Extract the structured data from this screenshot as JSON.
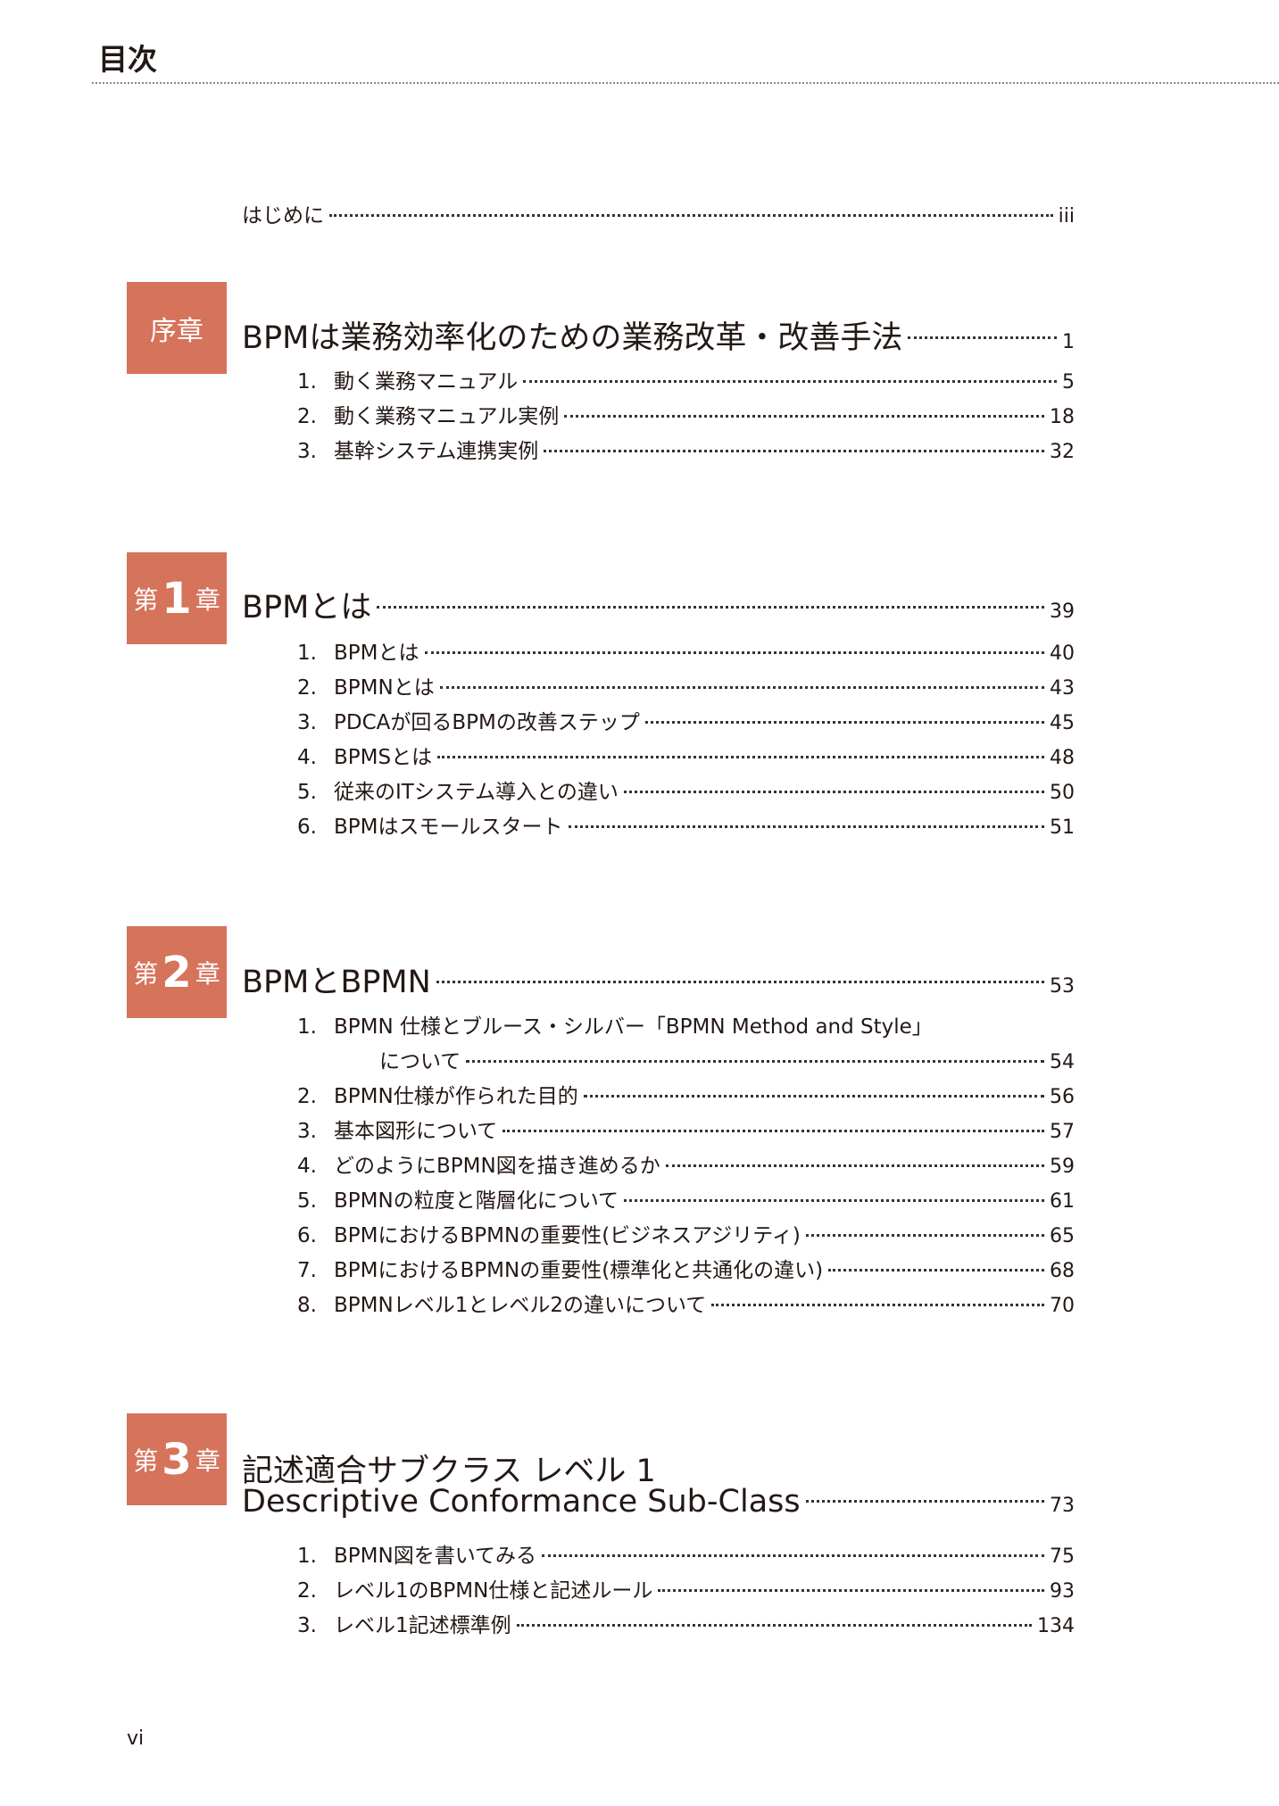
{
  "header": {
    "title": "目次"
  },
  "intro": {
    "label": "はじめに",
    "page": "iii"
  },
  "chapters": [
    {
      "badge": {
        "text": "序章"
      },
      "title": [
        "BPMは業務効率化のための業務改革・改善手法"
      ],
      "page": "1",
      "items": [
        {
          "num": "1.",
          "label": "動く業務マニュアル",
          "page": "5"
        },
        {
          "num": "2.",
          "label": "動く業務マニュアル実例",
          "page": "18"
        },
        {
          "num": "3.",
          "label": "基幹システム連携実例",
          "page": "32"
        }
      ]
    },
    {
      "badge": {
        "prefix": "第",
        "num": "1",
        "suffix": "章"
      },
      "title": [
        "BPMとは"
      ],
      "page": "39",
      "items": [
        {
          "num": "1.",
          "label": "BPMとは",
          "page": "40"
        },
        {
          "num": "2.",
          "label": "BPMNとは",
          "page": "43"
        },
        {
          "num": "3.",
          "label": "PDCAが回るBPMの改善ステップ",
          "page": "45"
        },
        {
          "num": "4.",
          "label": "BPMSとは",
          "page": "48"
        },
        {
          "num": "5.",
          "label": "従来のITシステム導入との違い",
          "page": "50"
        },
        {
          "num": "6.",
          "label": "BPMはスモールスタート",
          "page": "51"
        }
      ]
    },
    {
      "badge": {
        "prefix": "第",
        "num": "2",
        "suffix": "章"
      },
      "title": [
        "BPMとBPMN"
      ],
      "page": "53",
      "items": [
        {
          "num": "1.",
          "label": "BPMN 仕様とブルース・シルバー「BPMN Method and Style」",
          "continuation": "について",
          "page": "54"
        },
        {
          "num": "2.",
          "label": "BPMN仕様が作られた目的",
          "page": "56"
        },
        {
          "num": "3.",
          "label": "基本図形について",
          "page": "57"
        },
        {
          "num": "4.",
          "label": "どのようにBPMN図を描き進めるか",
          "page": "59"
        },
        {
          "num": "5.",
          "label": "BPMNの粒度と階層化について",
          "page": "61"
        },
        {
          "num": "6.",
          "label": "BPMにおけるBPMNの重要性(ビジネスアジリティ)",
          "page": "65"
        },
        {
          "num": "7.",
          "label": "BPMにおけるBPMNの重要性(標準化と共通化の違い)",
          "page": "68"
        },
        {
          "num": "8.",
          "label": "BPMNレベル1とレベル2の違いについて",
          "page": "70"
        }
      ]
    },
    {
      "badge": {
        "prefix": "第",
        "num": "3",
        "suffix": "章"
      },
      "title": [
        "記述適合サブクラス レベル 1",
        "Descriptive Conformance Sub-Class"
      ],
      "page": "73",
      "items": [
        {
          "num": "1.",
          "label": "BPMN図を書いてみる",
          "page": "75"
        },
        {
          "num": "2.",
          "label": "レベル1のBPMN仕様と記述ルール",
          "page": "93"
        },
        {
          "num": "3.",
          "label": "レベル1記述標準例",
          "page": "134"
        }
      ]
    }
  ],
  "footer": {
    "folio": "vi"
  },
  "colors": {
    "badge": "#d5735b",
    "text": "#231815"
  }
}
